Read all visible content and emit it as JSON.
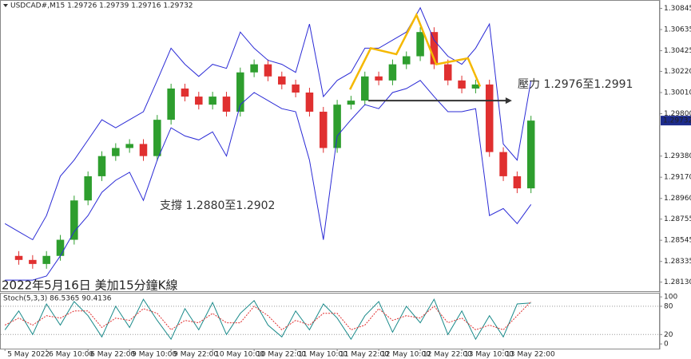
{
  "chart_data": [
    {
      "type": "line",
      "title": "USDCAD#,M15  1.29726 1.29739 1.29716 1.29732",
      "annotations": [
        "壓力 1.2976至1.2991",
        "支撐 1.2880至1.2902",
        "2022年5月16日 美加15分鐘K線"
      ],
      "x": [
        0,
        4,
        8,
        12,
        16,
        20,
        24,
        28,
        32,
        36,
        40,
        44,
        48,
        52,
        56,
        60,
        64,
        68,
        72,
        76,
        80,
        84,
        88,
        92,
        96,
        100,
        104,
        108,
        112,
        116,
        120,
        124,
        128,
        132,
        136,
        140,
        144,
        148,
        152
      ],
      "series": [
        {
          "style": "candles",
          "color": "#2e9e2e",
          "down_color": "#e03030",
          "values": [
            1.2839,
            1.2835,
            1.2831,
            1.2839,
            1.2855,
            1.2894,
            1.2918,
            1.2938,
            1.2946,
            1.295,
            1.2938,
            1.2974,
            1.3005,
            1.2997,
            1.2989,
            1.2997,
            1.2982,
            1.3021,
            1.3029,
            1.3017,
            1.3009,
            1.3001,
            1.2982,
            1.2946,
            1.2989,
            1.2993,
            1.3017,
            1.3013,
            1.3029,
            1.3037,
            1.3061,
            1.3029,
            1.3013,
            1.3005,
            1.3009,
            1.2942,
            1.2918,
            1.2906,
            1.29732
          ]
        },
        {
          "color": "#2b2bd6",
          "values": [
            1.2871,
            1.2863,
            1.2855,
            1.2879,
            1.2918,
            1.2934,
            1.2954,
            1.2974,
            1.2966,
            1.2974,
            1.2982,
            1.3013,
            1.3045,
            1.3029,
            1.3017,
            1.3029,
            1.3025,
            1.3061,
            1.3045,
            1.3033,
            1.3029,
            1.3021,
            1.3069,
            1.2997,
            1.3013,
            1.3021,
            1.3045,
            1.3045,
            1.3053,
            1.3061,
            1.3085,
            1.3053,
            1.3037,
            1.3029,
            1.3045,
            1.3069,
            1.295,
            1.2934,
            1.3013
          ]
        },
        {
          "color": "#2b2bd6",
          "values": [
            1.2815,
            1.2815,
            1.2815,
            1.2819,
            1.2839,
            1.2863,
            1.2879,
            1.2902,
            1.2914,
            1.2922,
            1.2894,
            1.2934,
            1.2966,
            1.2958,
            1.2954,
            1.2962,
            1.2938,
            1.2989,
            1.3001,
            1.2993,
            1.2985,
            1.2982,
            1.2934,
            1.2855,
            1.2958,
            1.2974,
            1.2989,
            1.2985,
            1.3001,
            1.3005,
            1.3013,
            1.2997,
            1.2982,
            1.2982,
            1.2985,
            1.2879,
            1.2886,
            1.2871,
            1.289
          ]
        }
      ],
      "pattern": {
        "color": "#f5b800",
        "x": [
          99.7,
          105.7,
          113.1,
          118.9,
          124.6,
          133.8,
          137.3
        ],
        "y": [
          1.3004,
          1.3045,
          1.3039,
          1.3078,
          1.3029,
          1.3035,
          1.3007
        ]
      },
      "arrow": {
        "color": "#333333",
        "x": [
          105,
          146.5
        ],
        "y": [
          1.2993,
          1.2993
        ]
      },
      "xlim": [
        -1.2,
        189
      ],
      "ylim": [
        1.2804,
        1.3092
      ],
      "yticks": [
        {
          "value": 1.30845,
          "label": "1.30845"
        },
        {
          "value": 1.30635,
          "label": "1.30635"
        },
        {
          "value": 1.30425,
          "label": "1.30425"
        },
        {
          "value": 1.3022,
          "label": "1.30220"
        },
        {
          "value": 1.3001,
          "label": "1.30010"
        },
        {
          "value": 1.298,
          "label": "1.29800"
        },
        {
          "value": 1.2938,
          "label": "1.29380"
        },
        {
          "value": 1.2917,
          "label": "1.29170"
        },
        {
          "value": 1.2896,
          "label": "1.28960"
        },
        {
          "value": 1.28755,
          "label": "1.28755"
        },
        {
          "value": 1.28545,
          "label": "1.28545"
        },
        {
          "value": 1.28335,
          "label": "1.28335"
        },
        {
          "value": 1.2813,
          "label": "1.28130"
        }
      ]
    },
    {
      "type": "line",
      "title": "Stoch(5,3,3) 86.5365 90.4136",
      "x": [
        0,
        4,
        8,
        12,
        16,
        20,
        24,
        28,
        32,
        36,
        40,
        44,
        48,
        52,
        56,
        60,
        64,
        68,
        72,
        76,
        80,
        84,
        88,
        92,
        96,
        100,
        104,
        108,
        112,
        116,
        120,
        124,
        128,
        132,
        136,
        140,
        144,
        148,
        152
      ],
      "series": [
        {
          "color": "#1a8a8a",
          "values": [
            30,
            70,
            20,
            85,
            40,
            90,
            60,
            15,
            80,
            35,
            95,
            50,
            10,
            75,
            30,
            88,
            20,
            65,
            92,
            40,
            15,
            70,
            30,
            85,
            55,
            10,
            60,
            90,
            25,
            80,
            45,
            95,
            20,
            70,
            10,
            60,
            15,
            85,
            87
          ]
        },
        {
          "color": "#e03030",
          "dashed": true,
          "values": [
            40,
            55,
            40,
            60,
            55,
            70,
            70,
            35,
            55,
            50,
            75,
            65,
            30,
            50,
            45,
            65,
            45,
            45,
            80,
            60,
            30,
            50,
            40,
            65,
            65,
            30,
            40,
            75,
            50,
            60,
            55,
            80,
            45,
            55,
            30,
            40,
            30,
            60,
            90
          ]
        }
      ],
      "levels": [
        20,
        80
      ],
      "xlim": [
        -1.2,
        189
      ],
      "ylim": [
        -10,
        107
      ],
      "yticks": [
        0,
        20,
        80,
        100
      ],
      "xticks": [
        {
          "value": 0,
          "label": "5 May 2022"
        },
        {
          "value": 12,
          "label": "6 May 10:00"
        },
        {
          "value": 24,
          "label": "6 May 22:00"
        },
        {
          "value": 36,
          "label": "9 May 10:00"
        },
        {
          "value": 48,
          "label": "9 May 22:00"
        },
        {
          "value": 60,
          "label": "10 May 10:00"
        },
        {
          "value": 72,
          "label": "10 May 22:00"
        },
        {
          "value": 84,
          "label": "11 May 10:00"
        },
        {
          "value": 96,
          "label": "11 May 22:00"
        },
        {
          "value": 108,
          "label": "12 May 10:00"
        },
        {
          "value": 120,
          "label": "12 May 22:00"
        },
        {
          "value": 132,
          "label": "13 May 10:00"
        },
        {
          "value": 144,
          "label": "13 May 22:00"
        }
      ]
    }
  ]
}
